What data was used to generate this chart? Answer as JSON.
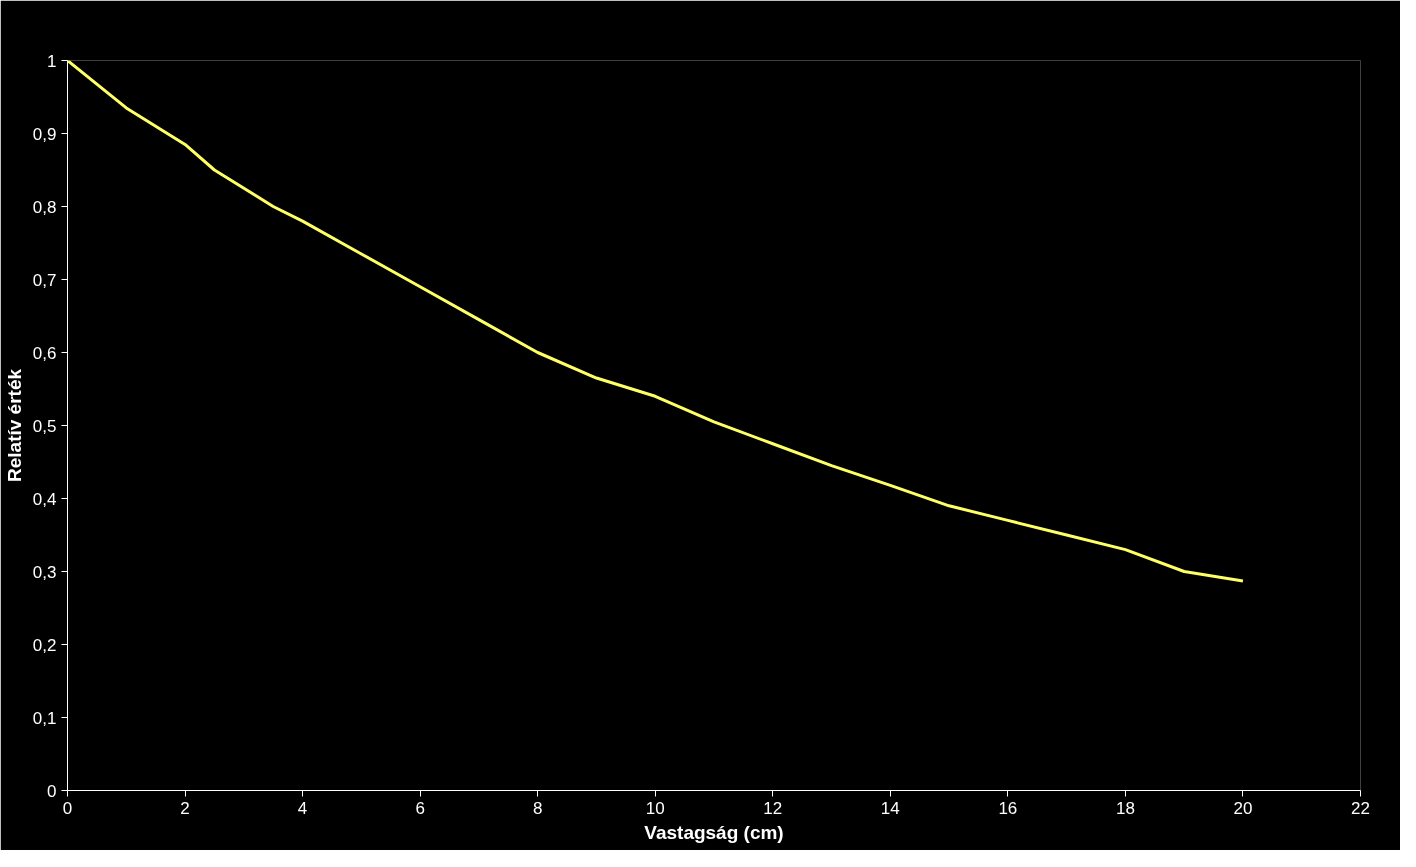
{
  "chart_data": {
    "type": "line",
    "xlabel": "Vastagság (cm)",
    "ylabel": "Relatív érték",
    "x": [
      0,
      1,
      2,
      2.5,
      3.5,
      4,
      5,
      6,
      7,
      8,
      9,
      10,
      11,
      12,
      13,
      14,
      15,
      16,
      17,
      18,
      19,
      20
    ],
    "series": [
      {
        "color": "#ffff66",
        "values": [
          1,
          0.935,
          0.885,
          0.85,
          0.8,
          0.78,
          0.735,
          0.69,
          0.645,
          0.6,
          0.565,
          0.54,
          0.505,
          0.475,
          0.445,
          0.418,
          0.39,
          0.37,
          0.35,
          0.33,
          0.3,
          0.287
        ]
      }
    ],
    "xlim": [
      0,
      22
    ],
    "xticks": [
      0,
      2,
      4,
      6,
      8,
      10,
      12,
      14,
      16,
      18,
      20,
      22
    ],
    "ylim": [
      0,
      1
    ],
    "yticks": [
      0,
      {
        "value": 0.1,
        "label": "0,1"
      },
      {
        "value": 0.2,
        "label": "0,2"
      },
      {
        "value": 0.3,
        "label": "0,3"
      },
      {
        "value": 0.4,
        "label": "0,4"
      },
      {
        "value": 0.5,
        "label": "0,5"
      },
      {
        "value": 0.6,
        "label": "0,6"
      },
      {
        "value": 0.7,
        "label": "0,7"
      },
      {
        "value": 0.8,
        "label": "0,8"
      },
      {
        "value": 0.9,
        "label": "0,9"
      },
      1
    ],
    "grid": false,
    "marker": "none",
    "line_style": "solid"
  }
}
